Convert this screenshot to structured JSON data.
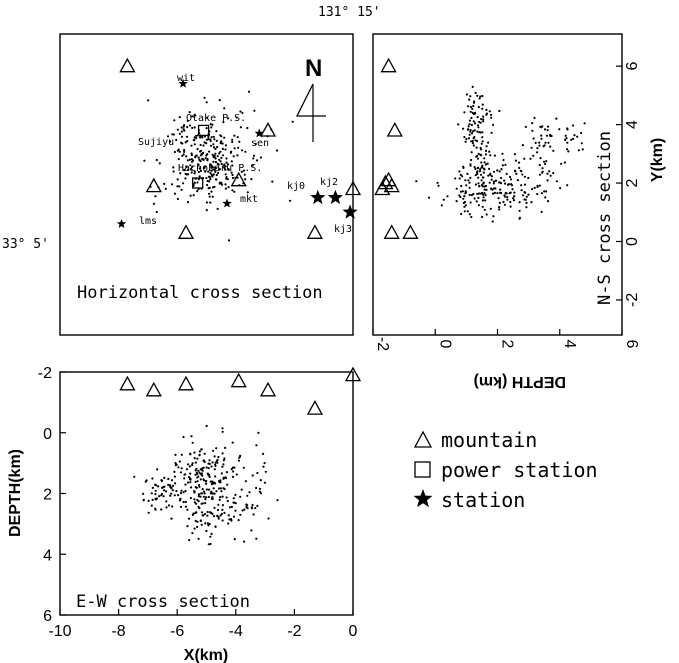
{
  "coords": {
    "lon_label": "131° 15'",
    "lat_label": "33° 5'"
  },
  "north_label": "N",
  "panels": {
    "horizontal": {
      "caption": "Horizontal cross section",
      "labels": [
        "wit",
        "Otake P.S.",
        "Sujiyu",
        "sen",
        "Hachobaru P.S.",
        "mkt",
        "kj0",
        "kj2",
        "lms",
        "kj3"
      ]
    },
    "ns": {
      "caption": "N-S cross section"
    },
    "ew": {
      "caption": "E-W cross section"
    }
  },
  "legend": [
    {
      "symbol": "triangle",
      "label": "mountain"
    },
    {
      "symbol": "square",
      "label": "power station"
    },
    {
      "symbol": "star",
      "label": "station"
    }
  ],
  "chart_data": [
    {
      "type": "scatter",
      "title": "Horizontal cross section",
      "xlabel": "",
      "ylabel": "",
      "xlim": [
        -10,
        0
      ],
      "ylim": [
        -3.2,
        7.1
      ],
      "grid": false,
      "series": [
        {
          "name": "mountain",
          "points": [
            [
              -7.7,
              6.0
            ],
            [
              -5.7,
              0.3
            ],
            [
              -6.8,
              1.9
            ],
            [
              -3.9,
              2.1
            ],
            [
              -2.9,
              3.8
            ],
            [
              -1.3,
              0.3
            ],
            [
              0.0,
              1.8
            ]
          ]
        },
        {
          "name": "power station",
          "points": [
            [
              -5.1,
              3.8
            ],
            [
              -5.3,
              2.0
            ]
          ]
        },
        {
          "name": "station",
          "points": [
            [
              -5.8,
              5.4
            ],
            [
              -3.2,
              3.7
            ],
            [
              -4.3,
              1.3
            ],
            [
              -1.2,
              1.5
            ],
            [
              -0.6,
              1.5
            ],
            [
              -0.1,
              1.0
            ],
            [
              -7.9,
              0.6
            ]
          ]
        }
      ]
    },
    {
      "type": "scatter",
      "title": "N-S cross section",
      "xlabel": "DEPTH (km)",
      "ylabel": "Y(km)",
      "xlim": [
        -2,
        6
      ],
      "ylim": [
        -3.2,
        7.1
      ],
      "xticks": [
        -2,
        0,
        2,
        4,
        6
      ],
      "yticks": [
        -2,
        0,
        2,
        4,
        6
      ],
      "grid": false,
      "series": [
        {
          "name": "mountain",
          "points": [
            [
              -1.5,
              6.0
            ],
            [
              -1.3,
              3.8
            ],
            [
              -1.5,
              2.1
            ],
            [
              -1.6,
              2.0
            ],
            [
              -1.7,
              1.8
            ],
            [
              -1.4,
              1.9
            ],
            [
              -1.4,
              0.3
            ],
            [
              -0.8,
              0.3
            ]
          ]
        }
      ]
    },
    {
      "type": "scatter",
      "title": "E-W cross section",
      "xlabel": "X(km)",
      "ylabel": "DEPTH(km)",
      "xlim": [
        -10,
        0
      ],
      "ylim": [
        -2,
        6
      ],
      "xticks": [
        -10,
        -8,
        -6,
        -4,
        -2,
        0
      ],
      "yticks": [
        -2,
        0,
        2,
        4,
        6
      ],
      "grid": false,
      "series": [
        {
          "name": "mountain",
          "points": [
            [
              -7.7,
              -1.6
            ],
            [
              -6.8,
              -1.4
            ],
            [
              -5.7,
              -1.6
            ],
            [
              -3.9,
              -1.7
            ],
            [
              -2.9,
              -1.4
            ],
            [
              -1.3,
              -0.8
            ],
            [
              0.0,
              -1.9
            ]
          ]
        }
      ]
    }
  ]
}
